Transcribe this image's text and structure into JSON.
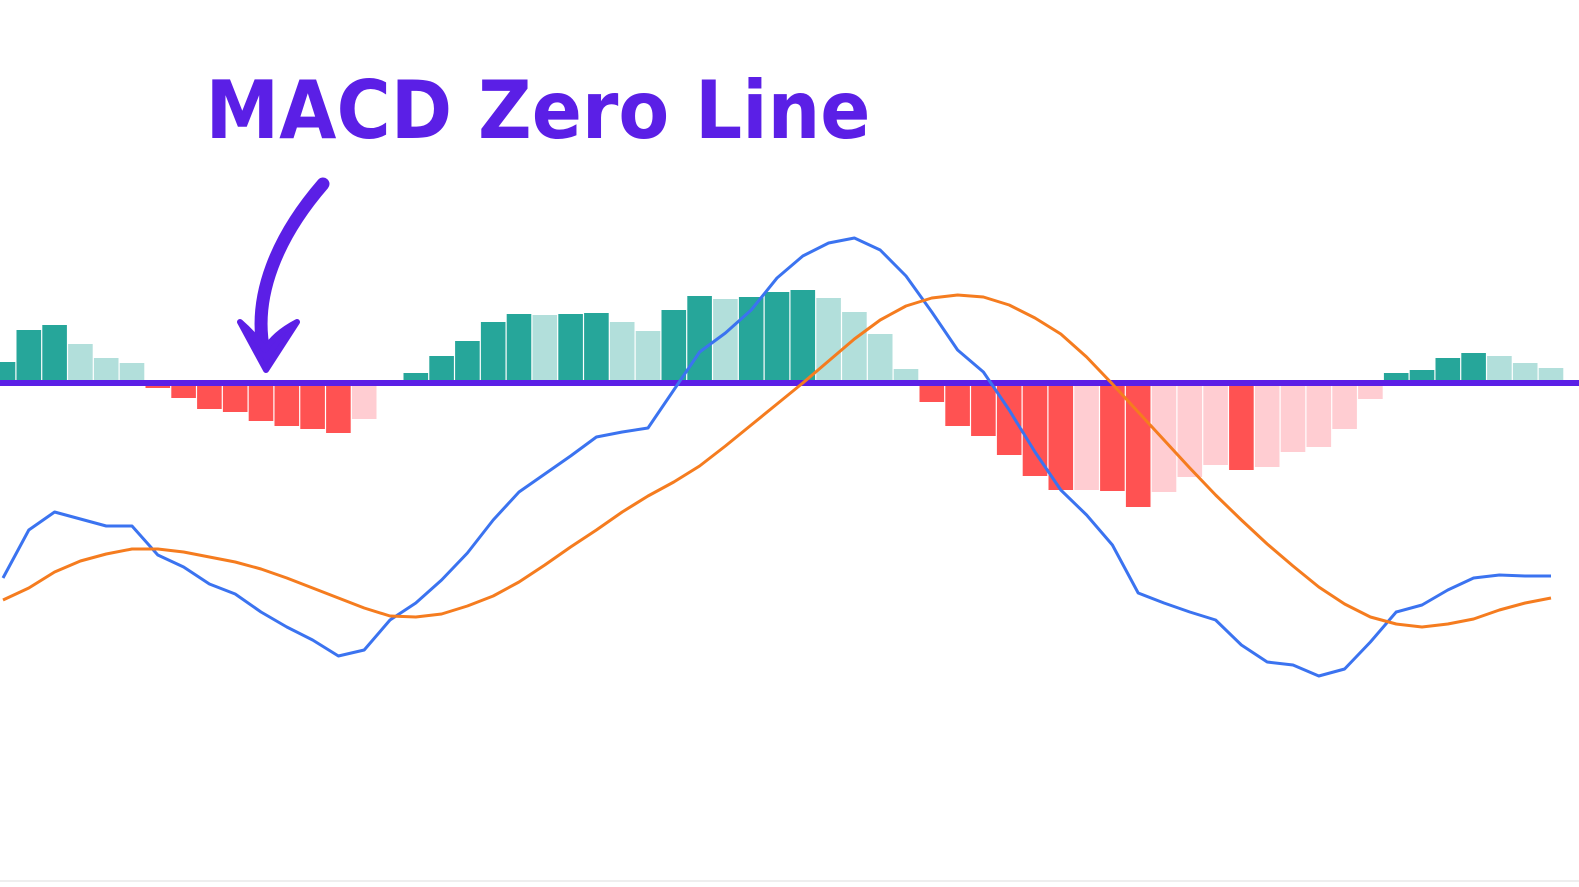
{
  "chart_data": {
    "type": "macd",
    "title": "MACD Zero Line",
    "title_color": "#5b1fe6",
    "zero_line_color": "#5b1fe6",
    "categories": [
      null,
      null,
      null,
      null,
      null,
      null,
      null,
      null,
      null,
      null,
      null,
      null,
      null,
      null,
      null,
      null,
      null,
      null,
      null,
      null,
      null,
      null,
      null,
      null,
      null,
      null,
      null,
      null,
      null,
      null,
      null,
      null,
      null,
      null,
      null,
      null,
      null,
      null,
      null,
      null,
      null,
      null,
      null,
      null,
      null,
      null,
      null,
      null,
      null,
      null,
      null,
      null,
      null,
      null,
      null,
      null,
      null,
      null,
      null,
      null,
      null
    ],
    "ylim": [
      -50.4,
      38.3
    ],
    "histogram": {
      "colors": [
        "#26a69a",
        "#b2dfdb",
        "#ff5252",
        "#ffcdd2"
      ],
      "values": [
        2.1,
        5.3,
        5.8,
        3.9,
        2.5,
        2.0,
        -0.5,
        -1.5,
        -2.6,
        -2.9,
        -3.8,
        -4.3,
        -4.6,
        -5.0,
        -3.6,
        -0.2,
        1.0,
        2.7,
        4.2,
        6.1,
        6.9,
        6.8,
        6.9,
        7.0,
        6.1,
        5.2,
        7.3,
        8.7,
        8.4,
        8.6,
        9.1,
        9.3,
        8.5,
        7.1,
        4.9,
        1.4,
        -1.9,
        -4.3,
        -5.3,
        -7.2,
        -9.3,
        -10.7,
        -10.7,
        -10.8,
        -12.4,
        -10.9,
        -9.4,
        -8.2,
        -8.7,
        -8.4,
        -6.9,
        -6.4,
        -4.6,
        -1.6,
        1.0,
        1.3,
        2.5,
        3.0,
        2.7,
        2.0,
        1.5
      ]
    },
    "series": [
      {
        "color": "#3b73f0",
        "values": [
          -19.5,
          -14.7,
          -12.9,
          -13.6,
          -14.3,
          -14.3,
          -17.2,
          -18.4,
          -20.1,
          -21.1,
          -22.9,
          -24.4,
          -25.7,
          -27.3,
          -26.7,
          -23.7,
          -22.0,
          -19.7,
          -17.0,
          -13.7,
          -10.9,
          -9.1,
          -7.3,
          -5.4,
          -4.9,
          -4.5,
          -0.7,
          3.1,
          5.0,
          7.3,
          10.5,
          12.7,
          14.0,
          14.5,
          13.3,
          10.7,
          7.1,
          3.3,
          1.1,
          -2.7,
          -6.9,
          -10.7,
          -13.2,
          -16.2,
          -21.0,
          -22.0,
          -22.9,
          -23.7,
          -26.2,
          -27.9,
          -28.2,
          -29.3,
          -28.6,
          -25.9,
          -22.9,
          -22.2,
          -20.7,
          -19.5,
          -19.2,
          -19.3,
          -19.3
        ]
      },
      {
        "color": "#f57c1f",
        "values": [
          -21.7,
          -20.5,
          -18.9,
          -17.8,
          -17.1,
          -16.6,
          -16.6,
          -16.9,
          -17.4,
          -17.9,
          -18.6,
          -19.5,
          -20.5,
          -21.5,
          -22.5,
          -23.3,
          -23.4,
          -23.1,
          -22.3,
          -21.3,
          -19.9,
          -18.2,
          -16.4,
          -14.7,
          -12.9,
          -11.3,
          -9.9,
          -8.3,
          -6.3,
          -4.2,
          -2.1,
          0,
          2.2,
          4.4,
          6.3,
          7.7,
          8.5,
          8.8,
          8.6,
          7.8,
          6.5,
          4.9,
          2.6,
          -0.1,
          -2.9,
          -5.7,
          -8.5,
          -11.2,
          -13.7,
          -16.1,
          -18.3,
          -20.4,
          -22.1,
          -23.4,
          -24.1,
          -24.4,
          -24.1,
          -23.6,
          -22.7,
          -22.0,
          -21.5
        ]
      }
    ]
  }
}
